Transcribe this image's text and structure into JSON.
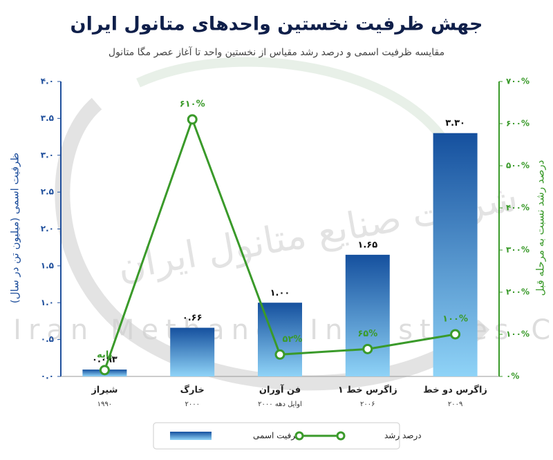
{
  "chart_data": {
    "type": "bar_line",
    "title": "جهش ظرفیت نخستین واحدهای متانول ایران",
    "subtitle": "مقایسه ظرفیت اسمی و درصد رشد مقیاس از نخستین واحد تا آغاز عصر مگا متانول",
    "watermark": [
      "شرکت صنایع متانول ایران",
      "Iran Methanol Industries Co"
    ],
    "y_label": "ظرفیت اسمی (میلیون تن در سال)",
    "y2_label": "درصد رشد نسبت به مرحله قبل",
    "categories": [
      "شیراز",
      "خارگ",
      "فن آوران",
      "زاگرس خط ۱",
      "زاگرس دو خط"
    ],
    "category_notes": [
      "۱۹۹۰",
      "۲۰۰۰",
      "اوایل دهه ۲۰۰۰",
      "۲۰۰۶",
      "۲۰۰۹"
    ],
    "series": [
      {
        "name": "ظرفیت اسمی",
        "type": "bar",
        "color": "#15509e",
        "color_light": "#8fd3f7",
        "values": [
          0.093,
          0.66,
          1.0,
          1.65,
          3.3
        ],
        "value_labels": [
          "۰.۰۹۳",
          "۰.۶۶",
          "۱.۰۰",
          "۱.۶۵",
          "۳.۳۰"
        ]
      },
      {
        "name": "درصد رشد",
        "type": "line",
        "axis": "y2",
        "color": "#3a9a2a",
        "values": [
          15,
          610,
          52,
          65,
          100
        ],
        "value_labels": [
          "پایه",
          "۶۱۰%",
          "۵۲%",
          "۶۵%",
          "۱۰۰%"
        ]
      }
    ],
    "ylim": [
      0,
      4
    ],
    "yticks": [
      {
        "value": 0,
        "label": "۰.۰"
      },
      {
        "value": 0.5,
        "label": "۰.۵"
      },
      {
        "value": 1,
        "label": "۱.۰"
      },
      {
        "value": 1.5,
        "label": "۱.۵"
      },
      {
        "value": 2,
        "label": "۲.۰"
      },
      {
        "value": 2.5,
        "label": "۲.۵"
      },
      {
        "value": 3,
        "label": "۳.۰"
      },
      {
        "value": 3.5,
        "label": "۳.۵"
      },
      {
        "value": 4,
        "label": "۴.۰"
      }
    ],
    "y2lim": [
      0,
      700
    ],
    "y2ticks": [
      {
        "value": 0,
        "label": "۰%"
      },
      {
        "value": 100,
        "label": "۱۰۰%"
      },
      {
        "value": 200,
        "label": "۲۰۰%"
      },
      {
        "value": 300,
        "label": "۳۰۰%"
      },
      {
        "value": 400,
        "label": "۴۰۰%"
      },
      {
        "value": 500,
        "label": "۵۰۰%"
      },
      {
        "value": 600,
        "label": "۶۰۰%"
      },
      {
        "value": 700,
        "label": "۷۰۰%"
      }
    ],
    "y_color": "#1f4f9c",
    "y2_color": "#3a9a2a"
  }
}
